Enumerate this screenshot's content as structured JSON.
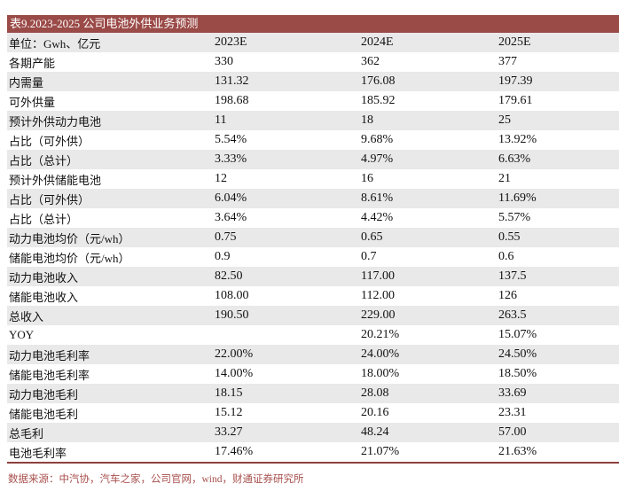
{
  "title": "表9.2023-2025 公司电池外供业务预测",
  "table": {
    "header": [
      "单位：Gwh、亿元",
      "2023E",
      "2024E",
      "2025E"
    ],
    "rows": [
      {
        "label": "各期产能",
        "values": [
          "330",
          "362",
          "377"
        ]
      },
      {
        "label": "内需量",
        "values": [
          "131.32",
          "176.08",
          "197.39"
        ]
      },
      {
        "label": "可外供量",
        "values": [
          "198.68",
          "185.92",
          "179.61"
        ]
      },
      {
        "label": "预计外供动力电池",
        "values": [
          "11",
          "18",
          "25"
        ]
      },
      {
        "label": "占比（可外供）",
        "values": [
          "5.54%",
          "9.68%",
          "13.92%"
        ]
      },
      {
        "label": "占比（总计）",
        "values": [
          "3.33%",
          "4.97%",
          "6.63%"
        ]
      },
      {
        "label": "预计外供储能电池",
        "values": [
          "12",
          "16",
          "21"
        ]
      },
      {
        "label": "占比（可外供）",
        "values": [
          "6.04%",
          "8.61%",
          "11.69%"
        ]
      },
      {
        "label": "占比（总计）",
        "values": [
          "3.64%",
          "4.42%",
          "5.57%"
        ]
      },
      {
        "label": "动力电池均价（元/wh）",
        "values": [
          "0.75",
          "0.65",
          "0.55"
        ]
      },
      {
        "label": "储能电池均价（元/wh）",
        "values": [
          "0.9",
          "0.7",
          "0.6"
        ]
      },
      {
        "label": "动力电池收入",
        "values": [
          "82.50",
          "117.00",
          "137.5"
        ]
      },
      {
        "label": "储能电池收入",
        "values": [
          "108.00",
          "112.00",
          "126"
        ]
      },
      {
        "label": "总收入",
        "values": [
          "190.50",
          "229.00",
          "263.5"
        ]
      },
      {
        "label": "YOY",
        "values": [
          "",
          "20.21%",
          "15.07%"
        ]
      },
      {
        "label": "动力电池毛利率",
        "values": [
          "22.00%",
          "24.00%",
          "24.50%"
        ]
      },
      {
        "label": "储能电池毛利率",
        "values": [
          "14.00%",
          "18.00%",
          "18.50%"
        ]
      },
      {
        "label": "动力电池毛利",
        "values": [
          "18.15",
          "28.08",
          "33.69"
        ]
      },
      {
        "label": "储能电池毛利",
        "values": [
          "15.12",
          "20.16",
          "23.31"
        ]
      },
      {
        "label": "总毛利",
        "values": [
          "33.27",
          "48.24",
          "57.00"
        ]
      },
      {
        "label": "电池毛利率",
        "values": [
          "17.46%",
          "21.07%",
          "21.63%"
        ]
      }
    ]
  },
  "footer": {
    "source": "数据来源：中汽协，汽车之家，公司官网，wind，财通证券研究所"
  },
  "colors": {
    "accent": "#9a4a47",
    "stripe": "#e9e9e9",
    "divider": "#8e413e",
    "source_text": "#a8514e",
    "text": "#111111"
  }
}
